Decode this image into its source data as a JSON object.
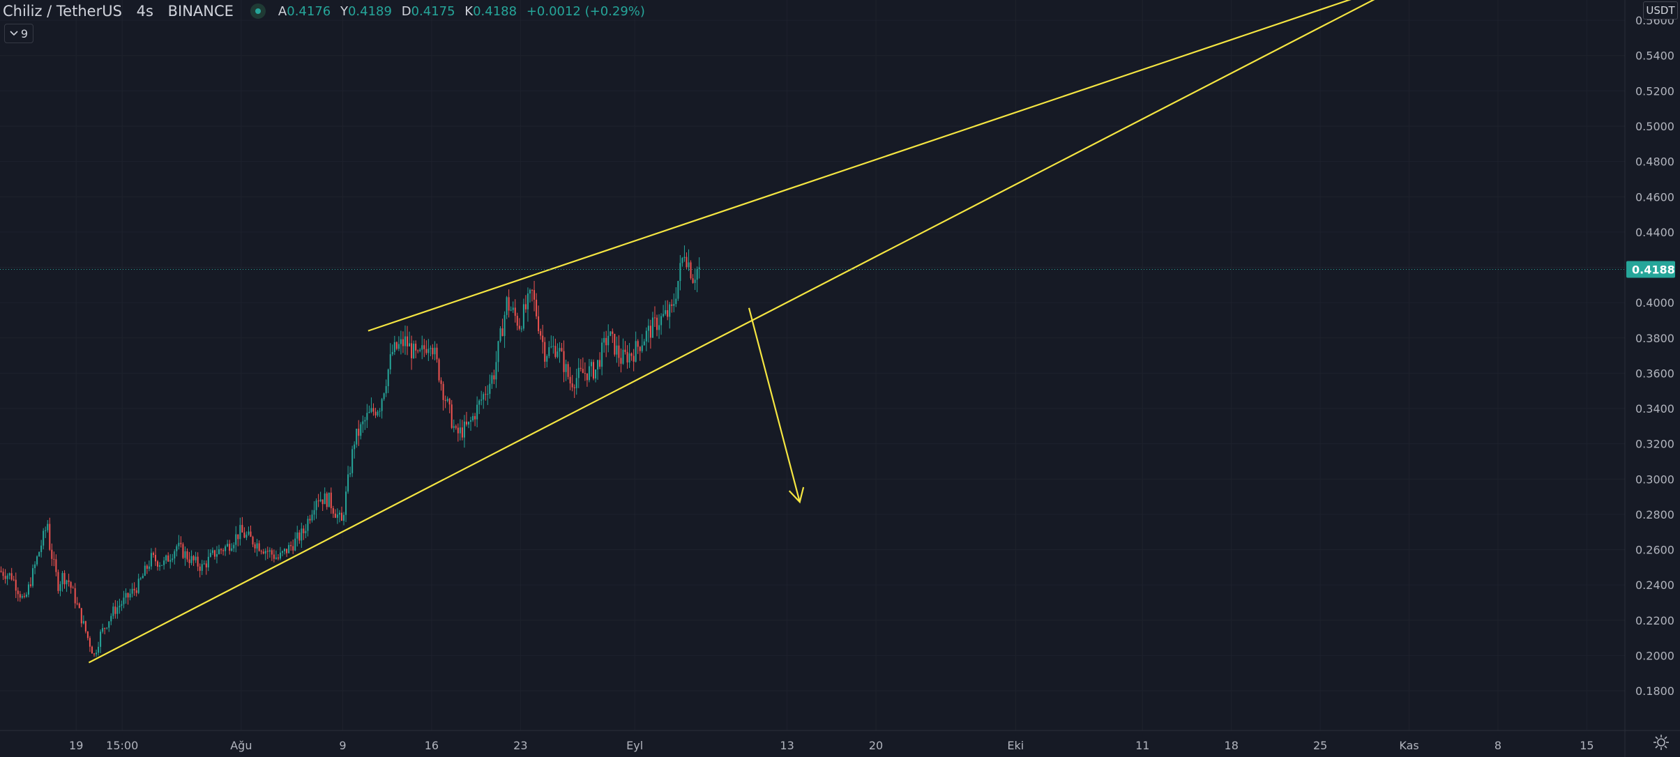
{
  "header": {
    "symbol": "Chiliz / TetherUS",
    "interval": "4s",
    "exchange": "BINANCE",
    "ohlc": [
      {
        "key": "A",
        "value": "0.4176"
      },
      {
        "key": "Y",
        "value": "0.4189"
      },
      {
        "key": "D",
        "value": "0.4175"
      },
      {
        "key": "K",
        "value": "0.4188"
      }
    ],
    "change": "+0.0012 (+0.29%)",
    "indicator_count": "9",
    "currency": "USDT"
  },
  "colors": {
    "background": "#161a25",
    "grid": "#1e222d",
    "up": "#26a69a",
    "down": "#ef5350",
    "drawing": "#f5e642",
    "axis_text": "#b2b5be",
    "last_price": "#26a69a"
  },
  "chart_data": {
    "type": "candlestick",
    "symbol": "Chiliz / TetherUS",
    "ylim": [
      0.17,
      0.57
    ],
    "y_scale": "linear",
    "price_axis_side": "right",
    "y_ticks": [
      "0.5600",
      "0.5400",
      "0.5200",
      "0.5000",
      "0.4800",
      "0.4600",
      "0.4400",
      "0.4200",
      "0.4000",
      "0.3800",
      "0.3600",
      "0.3400",
      "0.3200",
      "0.3000",
      "0.2800",
      "0.2600",
      "0.2400",
      "0.2200",
      "0.2000",
      "0.1800"
    ],
    "x_ticks": [
      {
        "label": "19",
        "date": "2021-07-19"
      },
      {
        "label": "15:00",
        "date": "2021-07-22T15:00"
      },
      {
        "label": "Ağu",
        "date": "2021-08-01"
      },
      {
        "label": "9",
        "date": "2021-08-09"
      },
      {
        "label": "16",
        "date": "2021-08-16"
      },
      {
        "label": "23",
        "date": "2021-08-23"
      },
      {
        "label": "Eyl",
        "date": "2021-09-01"
      },
      {
        "label": "13",
        "date": "2021-09-13"
      },
      {
        "label": "20",
        "date": "2021-09-20"
      },
      {
        "label": "Eki",
        "date": "2021-10-01"
      },
      {
        "label": "11",
        "date": "2021-10-11"
      },
      {
        "label": "18",
        "date": "2021-10-18"
      },
      {
        "label": "25",
        "date": "2021-10-25"
      },
      {
        "label": "Kas",
        "date": "2021-11-01"
      },
      {
        "label": "8",
        "date": "2021-11-08"
      },
      {
        "label": "15",
        "date": "2021-11-15"
      }
    ],
    "xlim": [
      "2021-07-13",
      "2021-11-18"
    ],
    "last_price": "0.4188",
    "price_path": [
      [
        "2021-07-13",
        0.248
      ],
      [
        "2021-07-14",
        0.245
      ],
      [
        "2021-07-15",
        0.23
      ],
      [
        "2021-07-16",
        0.255
      ],
      [
        "2021-07-16T20:00",
        0.275
      ],
      [
        "2021-07-17",
        0.262
      ],
      [
        "2021-07-17T16:00",
        0.24
      ],
      [
        "2021-07-18",
        0.245
      ],
      [
        "2021-07-18T12:00",
        0.242
      ],
      [
        "2021-07-19",
        0.232
      ],
      [
        "2021-07-20",
        0.21
      ],
      [
        "2021-07-20T12:00",
        0.2
      ],
      [
        "2021-07-21",
        0.212
      ],
      [
        "2021-07-22",
        0.225
      ],
      [
        "2021-07-23",
        0.232
      ],
      [
        "2021-07-24",
        0.24
      ],
      [
        "2021-07-25",
        0.255
      ],
      [
        "2021-07-26",
        0.252
      ],
      [
        "2021-07-27",
        0.262
      ],
      [
        "2021-07-28",
        0.255
      ],
      [
        "2021-07-29",
        0.25
      ],
      [
        "2021-07-30",
        0.258
      ],
      [
        "2021-07-31",
        0.262
      ],
      [
        "2021-08-01",
        0.27
      ],
      [
        "2021-08-02",
        0.265
      ],
      [
        "2021-08-03",
        0.26
      ],
      [
        "2021-08-04",
        0.255
      ],
      [
        "2021-08-05",
        0.262
      ],
      [
        "2021-08-06",
        0.27
      ],
      [
        "2021-08-07",
        0.29
      ],
      [
        "2021-08-08",
        0.288
      ],
      [
        "2021-08-09",
        0.275
      ],
      [
        "2021-08-10",
        0.322
      ],
      [
        "2021-08-11",
        0.335
      ],
      [
        "2021-08-12",
        0.342
      ],
      [
        "2021-08-13",
        0.372
      ],
      [
        "2021-08-14",
        0.378
      ],
      [
        "2021-08-15",
        0.368
      ],
      [
        "2021-08-16",
        0.38
      ],
      [
        "2021-08-17",
        0.35
      ],
      [
        "2021-08-18",
        0.325
      ],
      [
        "2021-08-19",
        0.33
      ],
      [
        "2021-08-20",
        0.345
      ],
      [
        "2021-08-21",
        0.36
      ],
      [
        "2021-08-22",
        0.4
      ],
      [
        "2021-08-23",
        0.388
      ],
      [
        "2021-08-24",
        0.405
      ],
      [
        "2021-08-25",
        0.372
      ],
      [
        "2021-08-26",
        0.375
      ],
      [
        "2021-08-27",
        0.355
      ],
      [
        "2021-08-28",
        0.36
      ],
      [
        "2021-08-29",
        0.362
      ],
      [
        "2021-08-30",
        0.382
      ],
      [
        "2021-08-31",
        0.368
      ],
      [
        "2021-09-01",
        0.372
      ],
      [
        "2021-09-02",
        0.382
      ],
      [
        "2021-09-03",
        0.39
      ],
      [
        "2021-09-04",
        0.395
      ],
      [
        "2021-09-05",
        0.43
      ],
      [
        "2021-09-05T16:00",
        0.415
      ],
      [
        "2021-09-06",
        0.4188
      ]
    ],
    "drawings": [
      {
        "type": "trend_line",
        "name": "upper-resistance-line",
        "from": [
          "2021-08-11",
          0.384
        ],
        "to": [
          "2021-11-01",
          0.583
        ]
      },
      {
        "type": "trend_line",
        "name": "lower-support-line",
        "from": [
          "2021-07-20",
          0.196
        ],
        "to": [
          "2021-11-01",
          0.582
        ]
      },
      {
        "type": "arrow",
        "name": "bearish-arrow",
        "from": [
          "2021-09-10",
          0.397
        ],
        "to": [
          "2021-09-14",
          0.287
        ]
      }
    ]
  }
}
